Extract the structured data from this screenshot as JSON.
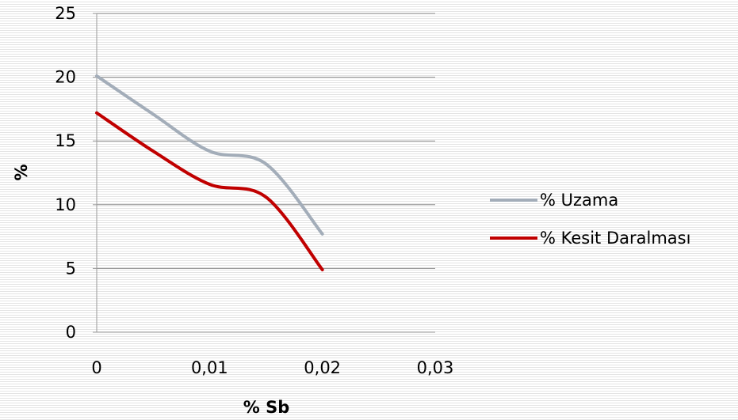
{
  "chart_data": {
    "type": "line",
    "title": "",
    "xlabel": "% Sb",
    "ylabel": "%",
    "xlim": [
      0,
      0.03
    ],
    "ylim": [
      0,
      25
    ],
    "x_ticks": [
      "0",
      "0,01",
      "0,02",
      "0,03"
    ],
    "y_ticks": [
      "0",
      "5",
      "10",
      "15",
      "20",
      "25"
    ],
    "grid": "horizontal",
    "legend": "right",
    "smooth": true,
    "x": [
      0,
      0.005,
      0.01,
      0.015,
      0.02
    ],
    "series": [
      {
        "name": "% Uzama",
        "color": "#a3adb9",
        "values": [
          20.1,
          17.1,
          14.2,
          13.2,
          7.7
        ]
      },
      {
        "name": "% Kesit Daralması",
        "color": "#c00000",
        "values": [
          17.2,
          14.2,
          11.6,
          10.6,
          4.9
        ]
      }
    ]
  }
}
